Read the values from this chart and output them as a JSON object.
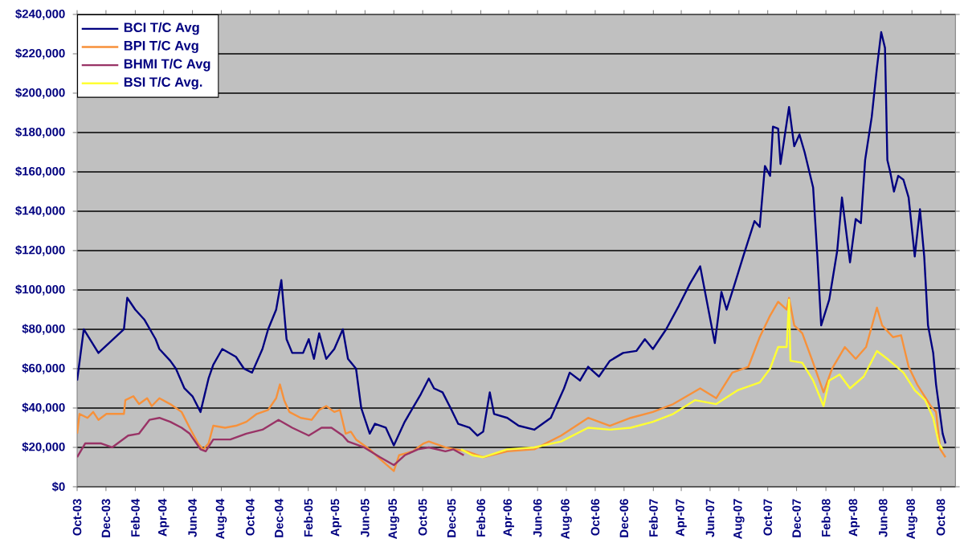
{
  "chart_data": {
    "type": "line",
    "xlim": [
      "2003-10-01",
      "2008-11-01"
    ],
    "ylim": [
      0,
      240000
    ],
    "xticks": [
      {
        "value": "2003-10-01",
        "label": "Oct-03"
      },
      {
        "value": "2003-12-01",
        "label": "Dec-03"
      },
      {
        "value": "2004-02-01",
        "label": "Feb-04"
      },
      {
        "value": "2004-04-01",
        "label": "Apr-04"
      },
      {
        "value": "2004-06-01",
        "label": "Jun-04"
      },
      {
        "value": "2004-08-01",
        "label": "Aug-04"
      },
      {
        "value": "2004-10-01",
        "label": "Oct-04"
      },
      {
        "value": "2004-12-01",
        "label": "Dec-04"
      },
      {
        "value": "2005-02-01",
        "label": "Feb-05"
      },
      {
        "value": "2005-04-01",
        "label": "Apr-05"
      },
      {
        "value": "2005-06-01",
        "label": "Jun-05"
      },
      {
        "value": "2005-08-01",
        "label": "Aug-05"
      },
      {
        "value": "2005-10-01",
        "label": "Oct-05"
      },
      {
        "value": "2005-12-01",
        "label": "Dec-05"
      },
      {
        "value": "2006-02-01",
        "label": "Feb-06"
      },
      {
        "value": "2006-04-01",
        "label": "Apr-06"
      },
      {
        "value": "2006-06-01",
        "label": "Jun-06"
      },
      {
        "value": "2006-08-01",
        "label": "Aug-06"
      },
      {
        "value": "2006-10-01",
        "label": "Oct-06"
      },
      {
        "value": "2006-12-01",
        "label": "Dec-06"
      },
      {
        "value": "2007-02-01",
        "label": "Feb-07"
      },
      {
        "value": "2007-04-01",
        "label": "Apr-07"
      },
      {
        "value": "2007-06-01",
        "label": "Jun-07"
      },
      {
        "value": "2007-08-01",
        "label": "Aug-07"
      },
      {
        "value": "2007-10-01",
        "label": "Oct-07"
      },
      {
        "value": "2007-12-01",
        "label": "Dec-07"
      },
      {
        "value": "2008-02-01",
        "label": "Feb-08"
      },
      {
        "value": "2008-04-01",
        "label": "Apr-08"
      },
      {
        "value": "2008-06-01",
        "label": "Jun-08"
      },
      {
        "value": "2008-08-01",
        "label": "Aug-08"
      },
      {
        "value": "2008-10-01",
        "label": "Oct-08"
      }
    ],
    "yticks": [
      {
        "value": 0,
        "label": "$0"
      },
      {
        "value": 20000,
        "label": "$20,000"
      },
      {
        "value": 40000,
        "label": "$40,000"
      },
      {
        "value": 60000,
        "label": "$60,000"
      },
      {
        "value": 80000,
        "label": "$80,000"
      },
      {
        "value": 100000,
        "label": "$100,000"
      },
      {
        "value": 120000,
        "label": "$120,000"
      },
      {
        "value": 140000,
        "label": "$140,000"
      },
      {
        "value": 160000,
        "label": "$160,000"
      },
      {
        "value": 180000,
        "label": "$180,000"
      },
      {
        "value": 200000,
        "label": "$200,000"
      },
      {
        "value": 220000,
        "label": "$220,000"
      },
      {
        "value": 240000,
        "label": "$240,000"
      }
    ],
    "grid": "y",
    "legend": "top left",
    "marker": "none",
    "line_style": "solid",
    "series": [
      {
        "name": "BCI T/C Avg",
        "color": "#000080",
        "x": [
          "2003-10-01",
          "2003-10-15",
          "2003-11-15",
          "2004-01-08",
          "2004-01-15",
          "2004-02-01",
          "2004-02-20",
          "2004-03-15",
          "2004-03-23",
          "2004-04-15",
          "2004-04-27",
          "2004-05-15",
          "2004-06-01",
          "2004-06-18",
          "2004-07-05",
          "2004-07-15",
          "2004-08-03",
          "2004-09-01",
          "2004-09-18",
          "2004-10-05",
          "2004-10-27",
          "2004-11-08",
          "2004-11-25",
          "2004-12-06",
          "2004-12-17",
          "2004-12-29",
          "2005-01-21",
          "2005-02-02",
          "2005-02-13",
          "2005-02-24",
          "2005-03-11",
          "2005-03-28",
          "2005-04-15",
          "2005-04-26",
          "2005-05-13",
          "2005-05-24",
          "2005-06-11",
          "2005-06-22",
          "2005-07-15",
          "2005-08-01",
          "2005-08-24",
          "2005-09-10",
          "2005-09-27",
          "2005-10-14",
          "2005-10-25",
          "2005-11-12",
          "2005-11-29",
          "2005-12-15",
          "2006-01-08",
          "2006-01-25",
          "2006-02-06",
          "2006-02-20",
          "2006-03-01",
          "2006-03-29",
          "2006-04-22",
          "2006-05-25",
          "2006-06-29",
          "2006-07-27",
          "2006-08-08",
          "2006-08-30",
          "2006-09-16",
          "2006-10-09",
          "2006-11-01",
          "2006-11-29",
          "2006-12-27",
          "2007-01-14",
          "2007-01-31",
          "2007-02-28",
          "2007-03-27",
          "2007-04-19",
          "2007-05-11",
          "2007-06-11",
          "2007-06-25",
          "2007-07-06",
          "2007-07-23",
          "2007-08-10",
          "2007-09-03",
          "2007-09-14",
          "2007-09-25",
          "2007-10-06",
          "2007-10-12",
          "2007-10-23",
          "2007-10-28",
          "2007-11-15",
          "2007-11-26",
          "2007-12-07",
          "2007-12-18",
          "2008-01-05",
          "2008-01-14",
          "2008-01-22",
          "2008-02-08",
          "2008-02-25",
          "2008-03-06",
          "2008-03-23",
          "2008-04-04",
          "2008-04-15",
          "2008-04-24",
          "2008-05-08",
          "2008-05-19",
          "2008-05-28",
          "2008-06-05",
          "2008-06-10",
          "2008-06-16",
          "2008-06-24",
          "2008-07-03",
          "2008-07-14",
          "2008-07-25",
          "2008-08-07",
          "2008-08-18",
          "2008-08-27",
          "2008-09-04",
          "2008-09-15",
          "2008-09-21",
          "2008-10-05",
          "2008-10-11"
        ],
        "values": [
          54000,
          80000,
          68000,
          80000,
          96000,
          90000,
          85000,
          75000,
          70000,
          64000,
          60000,
          50000,
          46000,
          38000,
          55000,
          62000,
          70000,
          66000,
          60000,
          58000,
          70000,
          80000,
          90000,
          105000,
          75000,
          68000,
          68000,
          75000,
          65000,
          78000,
          65000,
          70000,
          80000,
          65000,
          60000,
          40000,
          27000,
          32000,
          30000,
          21000,
          33000,
          40000,
          47000,
          55000,
          50000,
          48000,
          40000,
          32000,
          30000,
          26000,
          28000,
          48000,
          37000,
          35000,
          31000,
          29000,
          35000,
          50000,
          58000,
          54000,
          61000,
          56000,
          64000,
          68000,
          69000,
          75000,
          70000,
          80000,
          92000,
          103000,
          112000,
          73000,
          99000,
          90000,
          103000,
          117000,
          135000,
          132000,
          163000,
          158000,
          183000,
          182000,
          164000,
          193000,
          173000,
          179000,
          170000,
          152000,
          117000,
          82000,
          95000,
          120000,
          147000,
          114000,
          136000,
          134000,
          166000,
          188000,
          213000,
          231000,
          223000,
          166000,
          160000,
          150000,
          158000,
          156000,
          147000,
          117000,
          141000,
          117000,
          82000,
          68000,
          52000,
          27000,
          22000
        ]
      },
      {
        "name": "BPI T/C Avg",
        "color": "#f7913a",
        "x": [
          "2003-10-01",
          "2003-10-06",
          "2003-10-23",
          "2003-11-04",
          "2003-11-15",
          "2003-12-02",
          "2004-01-08",
          "2004-01-11",
          "2004-01-28",
          "2004-02-09",
          "2004-02-26",
          "2004-03-07",
          "2004-03-23",
          "2004-04-15",
          "2004-05-09",
          "2004-05-26",
          "2004-06-13",
          "2004-06-24",
          "2004-07-05",
          "2004-07-15",
          "2004-08-09",
          "2004-09-01",
          "2004-09-23",
          "2004-10-15",
          "2004-11-08",
          "2004-11-25",
          "2004-12-03",
          "2004-12-12",
          "2004-12-23",
          "2005-01-16",
          "2005-02-08",
          "2005-02-24",
          "2005-03-11",
          "2005-03-28",
          "2005-04-09",
          "2005-04-21",
          "2005-05-02",
          "2005-05-13",
          "2005-06-11",
          "2005-07-03",
          "2005-08-01",
          "2005-08-12",
          "2005-09-10",
          "2005-10-03",
          "2005-10-14",
          "2005-11-18",
          "2005-12-10",
          "2006-01-02",
          "2006-02-06",
          "2006-03-29",
          "2006-05-25",
          "2006-07-21",
          "2006-09-16",
          "2006-11-01",
          "2006-12-15",
          "2007-01-31",
          "2007-03-15",
          "2007-05-11",
          "2007-06-14",
          "2007-07-18",
          "2007-08-21",
          "2007-09-14",
          "2007-10-06",
          "2007-10-23",
          "2007-11-10",
          "2007-11-15",
          "2007-11-26",
          "2007-12-13",
          "2008-01-05",
          "2008-01-27",
          "2008-02-14",
          "2008-03-12",
          "2008-04-04",
          "2008-04-26",
          "2008-05-19",
          "2008-05-30",
          "2008-06-22",
          "2008-07-09",
          "2008-07-25",
          "2008-08-12",
          "2008-09-10",
          "2008-09-21",
          "2008-09-30",
          "2008-10-11"
        ],
        "values": [
          27000,
          37000,
          35000,
          38000,
          34000,
          37000,
          37000,
          44000,
          46000,
          42000,
          45000,
          41000,
          45000,
          42000,
          38000,
          30000,
          22000,
          19000,
          22000,
          31000,
          30000,
          31000,
          33000,
          37000,
          39000,
          45000,
          52000,
          44000,
          38000,
          35000,
          34000,
          39000,
          41000,
          38000,
          39000,
          27000,
          28000,
          24000,
          19000,
          14000,
          8000,
          16000,
          18000,
          22000,
          23000,
          20000,
          19000,
          18000,
          15000,
          18000,
          19000,
          26000,
          35000,
          31000,
          35000,
          38000,
          42000,
          50000,
          45000,
          58000,
          61000,
          76000,
          87000,
          94000,
          90000,
          96000,
          82000,
          78000,
          63000,
          48000,
          60000,
          71000,
          65000,
          71000,
          91000,
          82000,
          76000,
          77000,
          61000,
          52000,
          41000,
          38000,
          19000,
          15000
        ]
      },
      {
        "name": "BHMI T/C Avg",
        "color": "#993366",
        "x": [
          "2003-10-01",
          "2003-10-18",
          "2003-11-21",
          "2003-12-14",
          "2004-01-17",
          "2004-02-09",
          "2004-03-02",
          "2004-03-23",
          "2004-04-15",
          "2004-05-09",
          "2004-05-26",
          "2004-06-18",
          "2004-06-29",
          "2004-07-15",
          "2004-08-20",
          "2004-09-23",
          "2004-10-27",
          "2004-11-30",
          "2004-12-29",
          "2005-02-02",
          "2005-03-01",
          "2005-03-22",
          "2005-04-15",
          "2005-04-26",
          "2005-05-30",
          "2005-07-03",
          "2005-08-01",
          "2005-08-24",
          "2005-09-21",
          "2005-10-14",
          "2005-11-18",
          "2005-12-05",
          "2005-12-27"
        ],
        "values": [
          15000,
          22000,
          22000,
          20000,
          26000,
          27000,
          34000,
          35000,
          33000,
          30000,
          27000,
          19000,
          18000,
          24000,
          24000,
          27000,
          29000,
          34000,
          30000,
          26000,
          30000,
          30000,
          26000,
          23000,
          20000,
          15000,
          11000,
          16000,
          19000,
          20000,
          18000,
          19000,
          16000
        ]
      },
      {
        "name": "BSI T/C Avg.",
        "color": "#ffff33",
        "x": [
          "2005-12-21",
          "2006-01-14",
          "2006-02-06",
          "2006-03-29",
          "2006-05-25",
          "2006-07-21",
          "2006-09-16",
          "2006-11-01",
          "2006-12-15",
          "2007-01-31",
          "2007-03-15",
          "2007-04-30",
          "2007-06-14",
          "2007-07-29",
          "2007-09-14",
          "2007-10-06",
          "2007-10-23",
          "2007-11-10",
          "2007-11-15",
          "2007-11-18",
          "2007-12-13",
          "2008-01-05",
          "2008-01-27",
          "2008-02-08",
          "2008-03-01",
          "2008-03-23",
          "2008-04-21",
          "2008-05-19",
          "2008-06-10",
          "2008-07-14",
          "2008-08-07",
          "2008-08-29",
          "2008-09-15",
          "2008-09-27",
          "2008-10-05"
        ],
        "values": [
          19000,
          16000,
          15000,
          19000,
          20000,
          23000,
          30000,
          29000,
          30000,
          33000,
          37000,
          44000,
          42000,
          49000,
          53000,
          60000,
          71000,
          71000,
          95000,
          64000,
          63000,
          54000,
          41000,
          54000,
          57000,
          50000,
          56000,
          69000,
          65000,
          58000,
          49000,
          44000,
          35000,
          22000,
          19000
        ]
      }
    ]
  }
}
